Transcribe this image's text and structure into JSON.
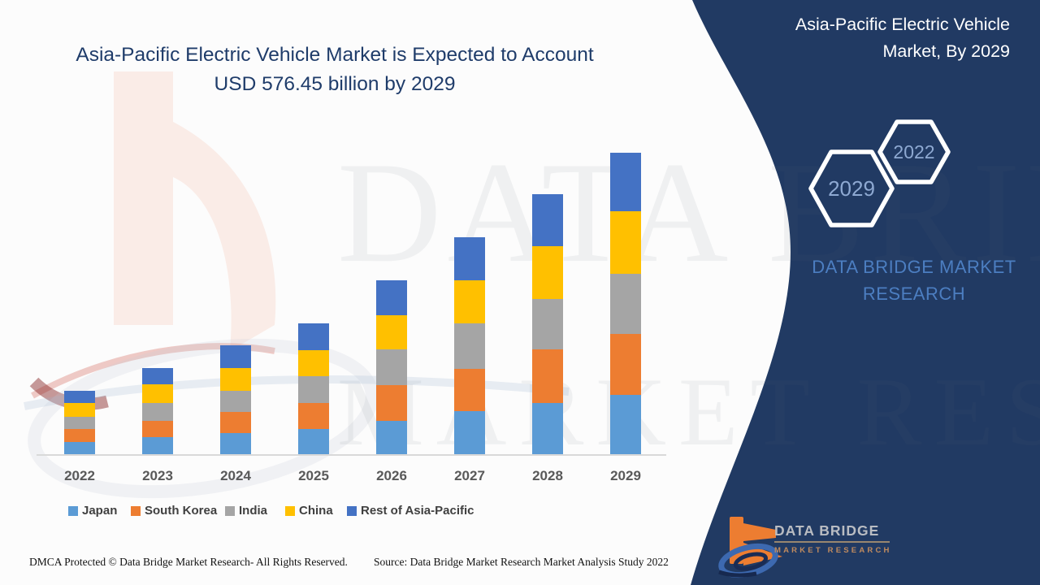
{
  "header": {
    "title_line1": "Asia-Pacific Electric Vehicle Market is Expected to Account",
    "title_line2": "USD 576.45 billion by 2029"
  },
  "side_panel": {
    "title_line1": "Asia-Pacific Electric Vehicle",
    "title_line2": "Market, By 2029",
    "hexagon_front_label": "2029",
    "hexagon_back_label": "2022",
    "brand_line1": "DATA BRIDGE MARKET",
    "brand_line2": "RESEARCH"
  },
  "watermark": {
    "line1": "DATA BRIDGE",
    "line2": "MARKET RESEARCH"
  },
  "logo": {
    "name": "DATA BRIDGE",
    "subtitle": "MARKET RESEARCH"
  },
  "footer": {
    "left": "DMCA Protected © Data Bridge Market Research- All Rights Reserved.",
    "right": "Source: Data Bridge Market Research Market Analysis Study 2022"
  },
  "colors": {
    "panel_navy": "#213A63",
    "title_navy": "#1F3C6A",
    "hex_label_blue": "#8EA9D2",
    "brand_blue": "#4C7EC1",
    "axis_gray": "#D9D9D9",
    "year_label_gray": "#595959",
    "legend_label_gray": "#404040",
    "logo_orange": "#ED7D31",
    "logo_silver": "#B9BCC2",
    "logo_swirl_blue": "#3D69B0"
  },
  "chart_data": {
    "type": "bar",
    "stacked": true,
    "title": "Asia-Pacific Electric Vehicle Market is Expected to Account USD 576.45 billion by 2029",
    "units": "USD billion (estimated from bar heights; 2029 total = 576.45)",
    "categories": [
      "2022",
      "2023",
      "2024",
      "2025",
      "2026",
      "2027",
      "2028",
      "2029"
    ],
    "series": [
      {
        "name": "Japan",
        "color": "#5B9BD5",
        "values": [
          23.3,
          32.6,
          40.4,
          48.2,
          63.7,
          82.3,
          97.9,
          113.4
        ]
      },
      {
        "name": "South Korea",
        "color": "#ED7D31",
        "values": [
          24.9,
          31.1,
          40.4,
          49.7,
          68.4,
          80.8,
          102.5,
          116.5
        ]
      },
      {
        "name": "India",
        "color": "#A5A5A5",
        "values": [
          23.3,
          34.2,
          40.4,
          51.3,
          68.4,
          87.0,
          96.3,
          115.0
        ]
      },
      {
        "name": "China",
        "color": "#FFC000",
        "values": [
          26.4,
          35.7,
          43.5,
          49.7,
          65.3,
          82.3,
          101.0,
          119.6
        ]
      },
      {
        "name": "Rest of Asia-Pacific",
        "color": "#4472C4",
        "values": [
          23.3,
          31.1,
          43.5,
          51.3,
          66.8,
          82.3,
          99.4,
          111.9
        ]
      }
    ],
    "totals": [
      121.2,
      164.7,
      208.2,
      250.2,
      332.6,
      414.7,
      497.1,
      576.45
    ],
    "xlabel": "",
    "ylabel": "",
    "y_axis_visible": false,
    "gridlines": false,
    "legend_position": "bottom"
  }
}
